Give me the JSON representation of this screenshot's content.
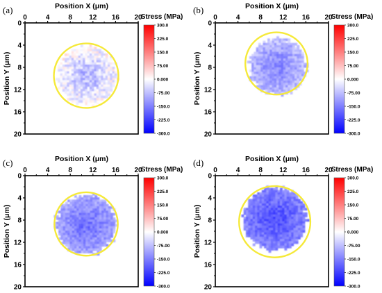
{
  "chart_data": [
    {
      "type": "heatmap",
      "panel_label": "(a)",
      "title": "",
      "xlabel": "Position X (μm)",
      "ylabel": "Position Y (μm)",
      "x_ticks": [
        "0",
        "4",
        "8",
        "12",
        "16",
        "20"
      ],
      "y_ticks": [
        "0",
        "4",
        "8",
        "12",
        "16",
        "20"
      ],
      "xlim": [
        0,
        20
      ],
      "ylim": [
        0,
        20
      ],
      "y_axis_inverted": true,
      "x_axis_position": "top",
      "grain_outline": {
        "shape": "circle",
        "center_x": 10.8,
        "center_y": 9.5,
        "radius": 5.7,
        "color": "#f5e93a"
      },
      "stress_region": {
        "center_x": 10.8,
        "center_y": 9.3,
        "radius": 5.2,
        "mean_stress": -45,
        "min_stress": -130,
        "max_stress": 70
      },
      "colorbar": {
        "label": "Stress (MPa)",
        "ticks": [
          "300.0",
          "225.0",
          "150.0",
          "75.00",
          "0.000",
          "-75.00",
          "-150.0",
          "-225.0",
          "-300.0"
        ],
        "range": [
          -300,
          300
        ],
        "colors": [
          "#ff0000",
          "#ffffff",
          "#0000ff"
        ]
      }
    },
    {
      "type": "heatmap",
      "panel_label": "(b)",
      "title": "",
      "xlabel": "Position X (μm)",
      "ylabel": "Position Y (μm)",
      "x_ticks": [
        "0",
        "4",
        "8",
        "12",
        "16",
        "20"
      ],
      "y_ticks": [
        "0",
        "4",
        "8",
        "12",
        "16",
        "20"
      ],
      "xlim": [
        0,
        20
      ],
      "ylim": [
        0,
        20
      ],
      "y_axis_inverted": true,
      "x_axis_position": "top",
      "grain_outline": {
        "shape": "circle",
        "center_x": 10.8,
        "center_y": 7.3,
        "radius": 5.5,
        "color": "#f5e93a"
      },
      "stress_region": {
        "center_x": 10.8,
        "center_y": 7.6,
        "radius": 5.0,
        "mean_stress": -110,
        "min_stress": -170,
        "max_stress": -20
      },
      "colorbar": {
        "label": "Stress (MPa)",
        "ticks": [
          "300.0",
          "225.0",
          "150.0",
          "75.00",
          "0.000",
          "-75.00",
          "-150.0",
          "-225.0",
          "-300.0"
        ],
        "range": [
          -300,
          300
        ],
        "colors": [
          "#ff0000",
          "#ffffff",
          "#0000ff"
        ]
      }
    },
    {
      "type": "heatmap",
      "panel_label": "(c)",
      "title": "",
      "xlabel": "Position X (μm)",
      "ylabel": "Position Y (μm)",
      "x_ticks": [
        "0",
        "4",
        "8",
        "12",
        "16",
        "20"
      ],
      "y_ticks": [
        "0",
        "4",
        "8",
        "12",
        "16",
        "20"
      ],
      "xlim": [
        0,
        20
      ],
      "ylim": [
        0,
        20
      ],
      "y_axis_inverted": true,
      "x_axis_position": "top",
      "grain_outline": {
        "shape": "circle",
        "center_x": 10.8,
        "center_y": 8.7,
        "radius": 5.6,
        "color": "#f5e93a"
      },
      "stress_region": {
        "center_x": 10.6,
        "center_y": 8.6,
        "radius": 5.3,
        "mean_stress": -135,
        "min_stress": -200,
        "max_stress": -60
      },
      "colorbar": {
        "label": "Stress (MPa)",
        "ticks": [
          "300.0",
          "225.0",
          "150.0",
          "75.00",
          "0.000",
          "-75.00",
          "-150.0",
          "-225.0",
          "-300.0"
        ],
        "range": [
          -300,
          300
        ],
        "colors": [
          "#ff0000",
          "#ffffff",
          "#0000ff"
        ]
      }
    },
    {
      "type": "heatmap",
      "panel_label": "(d)",
      "title": "",
      "xlabel": "Position X (μm)",
      "ylabel": "Position Y (μm)",
      "x_ticks": [
        "0",
        "4",
        "8",
        "12",
        "16",
        "20"
      ],
      "y_ticks": [
        "0",
        "4",
        "8",
        "12",
        "16",
        "20"
      ],
      "xlim": [
        0,
        20
      ],
      "ylim": [
        0,
        20
      ],
      "y_axis_inverted": true,
      "x_axis_position": "top",
      "grain_outline": {
        "shape": "circle",
        "center_x": 10.5,
        "center_y": 8.3,
        "radius": 6.3,
        "color": "#f5e93a"
      },
      "stress_region": {
        "center_x": 10.4,
        "center_y": 7.6,
        "radius": 5.6,
        "mean_stress": -175,
        "min_stress": -240,
        "max_stress": -100
      },
      "colorbar": {
        "label": "Stress (MPa)",
        "ticks": [
          "300.0",
          "225.0",
          "150.0",
          "75.00",
          "0.000",
          "-75.00",
          "-150.0",
          "-225.0",
          "-300.0"
        ],
        "range": [
          -300,
          300
        ],
        "colors": [
          "#ff0000",
          "#ffffff",
          "#0000ff"
        ]
      }
    }
  ]
}
